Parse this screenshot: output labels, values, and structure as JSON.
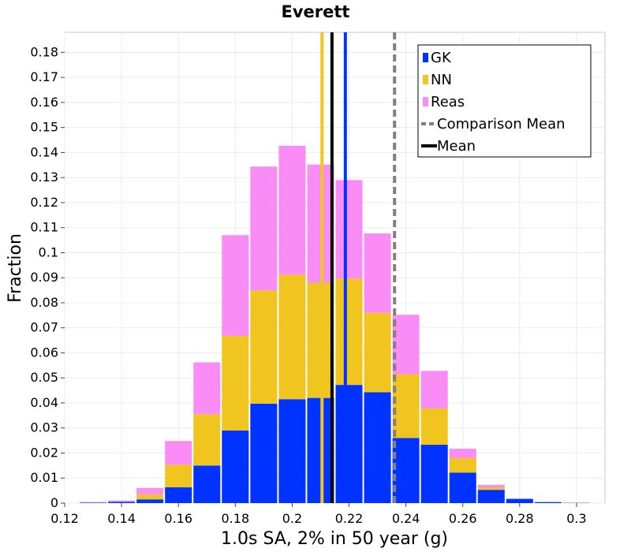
{
  "chart_data": {
    "type": "bar",
    "title": "Everett",
    "xlabel": "1.0s SA, 2% in 50 year (g)",
    "ylabel": "Fraction",
    "xlim": [
      0.12,
      0.31
    ],
    "ylim": [
      0,
      0.188
    ],
    "bin_width": 0.01,
    "x_ticks": [
      "0.12",
      "0.14",
      "0.16",
      "0.18",
      "0.2",
      "0.22",
      "0.24",
      "0.26",
      "0.28",
      "0.3"
    ],
    "y_ticks": [
      "0",
      "0.01",
      "0.02",
      "0.03",
      "0.04",
      "0.05",
      "0.06",
      "0.07",
      "0.08",
      "0.09",
      "0.1",
      "0.11",
      "0.12",
      "0.13",
      "0.14",
      "0.15",
      "0.16",
      "0.17",
      "0.18"
    ],
    "grid": true,
    "stacked": true,
    "bins": [
      0.13,
      0.14,
      0.15,
      0.16,
      0.17,
      0.18,
      0.19,
      0.2,
      0.21,
      0.22,
      0.23,
      0.24,
      0.25,
      0.26,
      0.27,
      0.28,
      0.29,
      0.3
    ],
    "series": [
      {
        "name": "GK",
        "color": "#0033ff",
        "values": [
          0.0002,
          0.0005,
          0.0015,
          0.0063,
          0.015,
          0.029,
          0.0397,
          0.0415,
          0.042,
          0.0472,
          0.0443,
          0.026,
          0.0233,
          0.0122,
          0.0053,
          0.0017,
          0.0004,
          0.0001
        ]
      },
      {
        "name": "NN",
        "color": "#f0c520",
        "values": [
          0.0,
          0.0001,
          0.002,
          0.009,
          0.0205,
          0.0378,
          0.0452,
          0.0497,
          0.046,
          0.0425,
          0.0317,
          0.0255,
          0.0145,
          0.0058,
          0.001,
          0.0,
          0.0,
          0.0
        ]
      },
      {
        "name": "Reas",
        "color": "#fa8cf5",
        "values": [
          0.0002,
          0.0004,
          0.0025,
          0.0095,
          0.0207,
          0.0402,
          0.0495,
          0.0515,
          0.0472,
          0.0393,
          0.0317,
          0.0237,
          0.015,
          0.0037,
          0.001,
          0.0,
          0.0,
          0.0
        ]
      }
    ],
    "mean_lines": [
      {
        "series": "NN",
        "x": 0.2105,
        "color": "#f0c520"
      },
      {
        "series": "GK",
        "x": 0.2187,
        "color": "#0033ff"
      },
      {
        "name": "Mean",
        "x": 0.214,
        "color": "#000000"
      },
      {
        "name": "Comparison Mean",
        "x": 0.236,
        "color": "#808080",
        "dashed": true
      }
    ],
    "legend": {
      "placement": "top-right",
      "entries": [
        {
          "label": "GK",
          "color": "#0033ff",
          "kind": "box"
        },
        {
          "label": "NN",
          "color": "#f0c520",
          "kind": "box"
        },
        {
          "label": "Reas",
          "color": "#fa8cf5",
          "kind": "box"
        },
        {
          "label": "Comparison Mean",
          "color": "#808080",
          "kind": "dashed-line"
        },
        {
          "label": "Mean",
          "color": "#000000",
          "kind": "line"
        }
      ]
    }
  }
}
